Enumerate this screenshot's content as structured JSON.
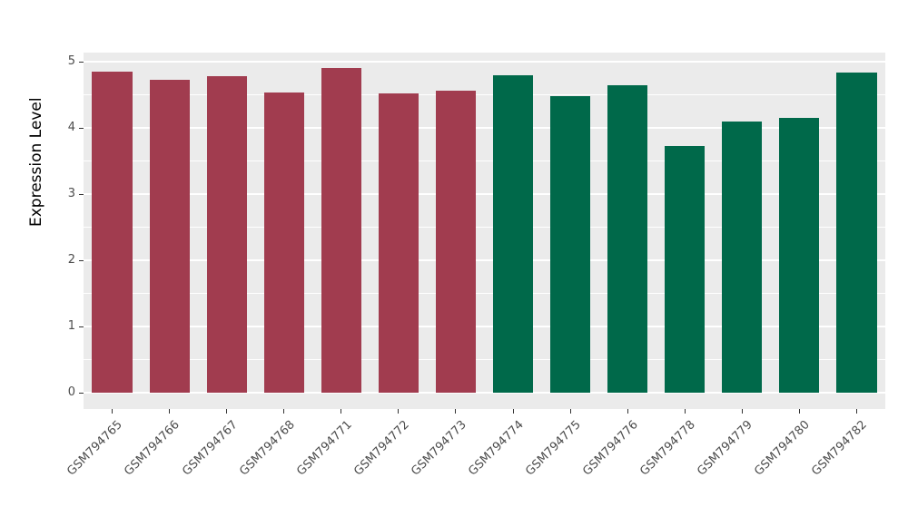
{
  "chart_data": {
    "type": "bar",
    "title": "",
    "xlabel": "",
    "ylabel": "Expression Level",
    "categories": [
      "GSM794765",
      "GSM794766",
      "GSM794767",
      "GSM794768",
      "GSM794771",
      "GSM794772",
      "GSM794773",
      "GSM794774",
      "GSM794775",
      "GSM794776",
      "GSM794778",
      "GSM794779",
      "GSM794780",
      "GSM794782"
    ],
    "values": [
      4.85,
      4.72,
      4.78,
      4.53,
      4.9,
      4.52,
      4.56,
      4.8,
      4.48,
      4.65,
      3.73,
      4.1,
      4.15,
      4.84
    ],
    "groups": [
      "A",
      "A",
      "A",
      "A",
      "A",
      "A",
      "A",
      "B",
      "B",
      "B",
      "B",
      "B",
      "B",
      "B"
    ],
    "group_colors": {
      "A": "#A13C4F",
      "B": "#00694A"
    },
    "ylim": [
      0,
      5
    ],
    "yticks": [
      0,
      1,
      2,
      3,
      4,
      5
    ],
    "grid": true,
    "legend": "none",
    "panel_background": "#EBEBEB",
    "gridline_color": "#FFFFFF"
  }
}
